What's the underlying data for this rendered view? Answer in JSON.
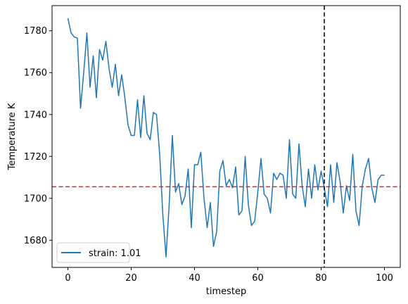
{
  "chart_data": {
    "type": "line",
    "xlabel": "timestep",
    "ylabel": "Temperature K",
    "xlim": [
      -5,
      105
    ],
    "ylim": [
      1667,
      1792
    ],
    "xticks": [
      0,
      20,
      40,
      60,
      80,
      100
    ],
    "yticks": [
      1680,
      1700,
      1720,
      1740,
      1760,
      1780
    ],
    "grid": false,
    "legend_position": "lower-left",
    "series": [
      {
        "name": "strain: 1.01",
        "color": "#1f77b4",
        "x": [
          0,
          1,
          2,
          3,
          4,
          5,
          6,
          7,
          8,
          9,
          10,
          11,
          12,
          13,
          14,
          15,
          16,
          17,
          18,
          19,
          20,
          21,
          22,
          23,
          24,
          25,
          26,
          27,
          28,
          29,
          30,
          31,
          32,
          33,
          34,
          35,
          36,
          37,
          38,
          39,
          40,
          41,
          42,
          43,
          44,
          45,
          46,
          47,
          48,
          49,
          50,
          51,
          52,
          53,
          54,
          55,
          56,
          57,
          58,
          59,
          60,
          61,
          62,
          63,
          64,
          65,
          66,
          67,
          68,
          69,
          70,
          71,
          72,
          73,
          74,
          75,
          76,
          77,
          78,
          79,
          80,
          81,
          82,
          83,
          84,
          85,
          86,
          87,
          88,
          89,
          90,
          91,
          92,
          93,
          94,
          95,
          96,
          97,
          98,
          99,
          100
        ],
        "y": [
          1786,
          1779,
          1777,
          1776.5,
          1743,
          1760,
          1779,
          1753,
          1768,
          1748,
          1771,
          1766,
          1775,
          1762,
          1753,
          1764,
          1749,
          1759,
          1748,
          1735,
          1730,
          1730,
          1747,
          1729,
          1749,
          1731,
          1728,
          1741,
          1740,
          1721,
          1692,
          1672,
          1697,
          1730,
          1703,
          1707,
          1697,
          1701,
          1714,
          1686,
          1716,
          1716,
          1722,
          1700,
          1686,
          1698,
          1677,
          1684,
          1713,
          1718,
          1706,
          1709,
          1705,
          1715,
          1692,
          1694,
          1720,
          1697,
          1687,
          1689,
          1703,
          1719,
          1702,
          1700,
          1693,
          1712,
          1709,
          1712,
          1711,
          1700,
          1728,
          1702,
          1700,
          1726,
          1706,
          1696,
          1714,
          1700,
          1716,
          1704,
          1713,
          1705,
          1696,
          1716,
          1698,
          1717,
          1708,
          1693,
          1706,
          1699,
          1721,
          1694,
          1687,
          1706,
          1714,
          1719,
          1705,
          1698,
          1709,
          1711,
          1711
        ]
      }
    ],
    "annotations": [
      {
        "kind": "hline",
        "y": 1705.5,
        "color": "#d62728",
        "style": "dashed"
      },
      {
        "kind": "vline",
        "x": 81,
        "color": "#000000",
        "style": "dashed"
      }
    ]
  }
}
